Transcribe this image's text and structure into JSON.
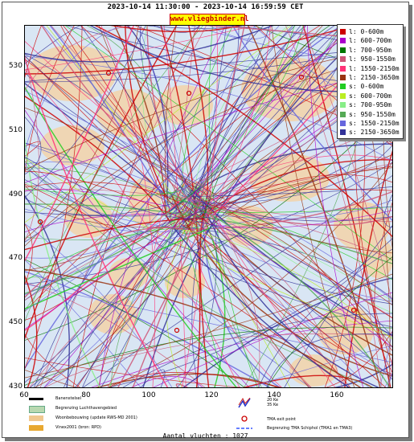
{
  "header": {
    "period": "2023-10-14 11:30:00 - 2023-10-14 16:59:59 CET",
    "site": "www.vliegbinder.nl"
  },
  "axes": {
    "y_ticks": [
      "530",
      "510",
      "490",
      "470",
      "450",
      "430"
    ],
    "x_ticks": [
      "60",
      "80",
      "100",
      "120",
      "140",
      "160"
    ]
  },
  "legend": [
    {
      "label": "l: 0-600m",
      "color": "#cc0000"
    },
    {
      "label": "l: 600-700m",
      "color": "#aa00cc"
    },
    {
      "label": "l: 700-950m",
      "color": "#007700"
    },
    {
      "label": "l: 950-1550m",
      "color": "#cc5577"
    },
    {
      "label": "l: 1550-2150m",
      "color": "#ff3377"
    },
    {
      "label": "l: 2150-3650m",
      "color": "#993311"
    },
    {
      "label": "s: 0-600m",
      "color": "#22cc22"
    },
    {
      "label": "s: 600-700m",
      "color": "#bbee22"
    },
    {
      "label": "s: 700-950m",
      "color": "#88ee88"
    },
    {
      "label": "s: 950-1550m",
      "color": "#55aa55"
    },
    {
      "label": "s: 1550-2150m",
      "color": "#6666dd"
    },
    {
      "label": "s: 2150-3650m",
      "color": "#333399"
    }
  ],
  "map_legend": {
    "left": [
      {
        "label": "Banenstelsel",
        "color": "#000000"
      },
      {
        "label": "Begrenzing Luchthavengebied",
        "color": "#b8d8b0"
      },
      {
        "label": "Woonbebouwing (update RWS-MD 2001)",
        "color": "#f0c890"
      },
      {
        "label": "Vinex2001 (bron: RPD)",
        "color": "#e8a830"
      }
    ],
    "right": [
      {
        "label": "20 Ke\n35 Ke",
        "icon": "noise-contour-icon"
      },
      {
        "label": "TMA exit point",
        "icon": "exit-point-icon"
      },
      {
        "label": "Begrenzing TMA Schiphol  (TMA1 en TMA3)",
        "icon": "tma-boundary-icon"
      }
    ]
  },
  "footer": {
    "count": "Aantal vluchten : 1027"
  }
}
